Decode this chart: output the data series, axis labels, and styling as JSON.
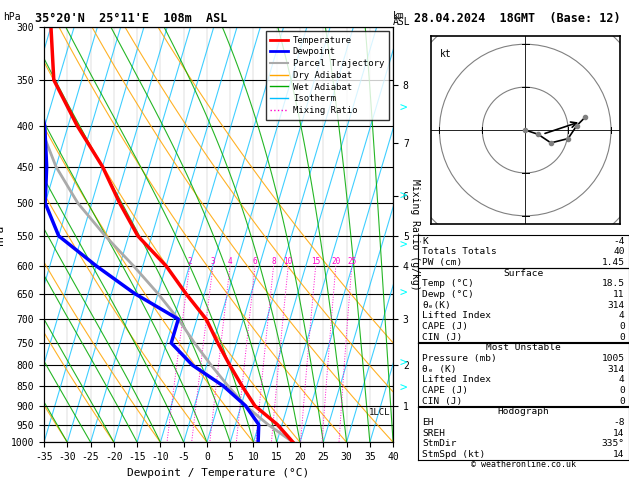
{
  "title_left": "35°20'N  25°11'E  108m  ASL",
  "title_right": "28.04.2024  18GMT  (Base: 12)",
  "xlabel": "Dewpoint / Temperature (°C)",
  "ylabel_left": "hPa",
  "background_color": "#ffffff",
  "skew_factor": 22,
  "pmin": 300,
  "pmax": 1000,
  "temp_min": -35,
  "temp_max": 40,
  "pressure_levels": [
    300,
    350,
    400,
    450,
    500,
    550,
    600,
    650,
    700,
    750,
    800,
    850,
    900,
    950,
    1000
  ],
  "isotherm_color": "#00bfff",
  "dry_adiabat_color": "#ffa500",
  "wet_adiabat_color": "#00aa00",
  "mixing_ratio_color": "#ff00cc",
  "temperature_profile_pressure": [
    1000,
    950,
    900,
    850,
    800,
    750,
    700,
    650,
    600,
    550,
    500,
    450,
    400,
    350,
    300
  ],
  "temperature_profile_temp": [
    18.5,
    14,
    8,
    4,
    0,
    -4,
    -8,
    -14,
    -20,
    -28,
    -34,
    -40,
    -48,
    -56,
    -60
  ],
  "temperature_color": "#ff0000",
  "dewpoint_profile_pressure": [
    1000,
    950,
    900,
    850,
    800,
    750,
    700,
    650,
    600,
    550,
    500,
    450,
    400,
    350,
    300
  ],
  "dewpoint_profile_temp": [
    11,
    10,
    6,
    0,
    -8,
    -14,
    -14,
    -25,
    -35,
    -45,
    -50,
    -52,
    -55,
    -60,
    -64
  ],
  "dewpoint_color": "#0000ff",
  "parcel_profile_pressure": [
    1000,
    950,
    900,
    850,
    800,
    750,
    700,
    650,
    600,
    550,
    500,
    450,
    400,
    350,
    300
  ],
  "parcel_profile_temp": [
    18.5,
    12,
    6,
    1,
    -4,
    -9,
    -14,
    -20,
    -27,
    -35,
    -43,
    -50,
    -56,
    -62,
    -67
  ],
  "parcel_color": "#aaaaaa",
  "mixing_ratios": [
    2,
    3,
    4,
    6,
    8,
    10,
    15,
    20,
    25
  ],
  "km_pressures": [
    900,
    800,
    700,
    600,
    550,
    490,
    420,
    355
  ],
  "km_values": [
    1,
    2,
    3,
    4,
    5,
    6,
    7,
    8
  ],
  "lcl_pressure": 900,
  "legend_items": [
    {
      "label": "Temperature",
      "color": "#ff0000",
      "lw": 2,
      "ls": "-"
    },
    {
      "label": "Dewpoint",
      "color": "#0000ff",
      "lw": 2,
      "ls": "-"
    },
    {
      "label": "Parcel Trajectory",
      "color": "#aaaaaa",
      "lw": 1.5,
      "ls": "-"
    },
    {
      "label": "Dry Adiabat",
      "color": "#ffa500",
      "lw": 1,
      "ls": "-"
    },
    {
      "label": "Wet Adiabat",
      "color": "#00aa00",
      "lw": 1,
      "ls": "-"
    },
    {
      "label": "Isotherm",
      "color": "#00bfff",
      "lw": 1,
      "ls": "-"
    },
    {
      "label": "Mixing Ratio",
      "color": "#ff00cc",
      "lw": 1,
      "ls": ":"
    }
  ],
  "stat_K": "-4",
  "stat_TT": "40",
  "stat_PW": "1.45",
  "stat_sfc_temp": "18.5",
  "stat_sfc_dewp": "11",
  "stat_sfc_theta_e": "314",
  "stat_sfc_LI": "4",
  "stat_sfc_CAPE": "0",
  "stat_sfc_CIN": "0",
  "stat_mu_pres": "1005",
  "stat_mu_theta_e": "314",
  "stat_mu_LI": "4",
  "stat_mu_CAPE": "0",
  "stat_mu_CIN": "0",
  "stat_EH": "-8",
  "stat_SREH": "14",
  "stat_StmDir": "335°",
  "stat_StmSpd": "14",
  "hodo_u": [
    0,
    3,
    6,
    10,
    12,
    14
  ],
  "hodo_v": [
    0,
    -1,
    -3,
    -2,
    1,
    3
  ]
}
